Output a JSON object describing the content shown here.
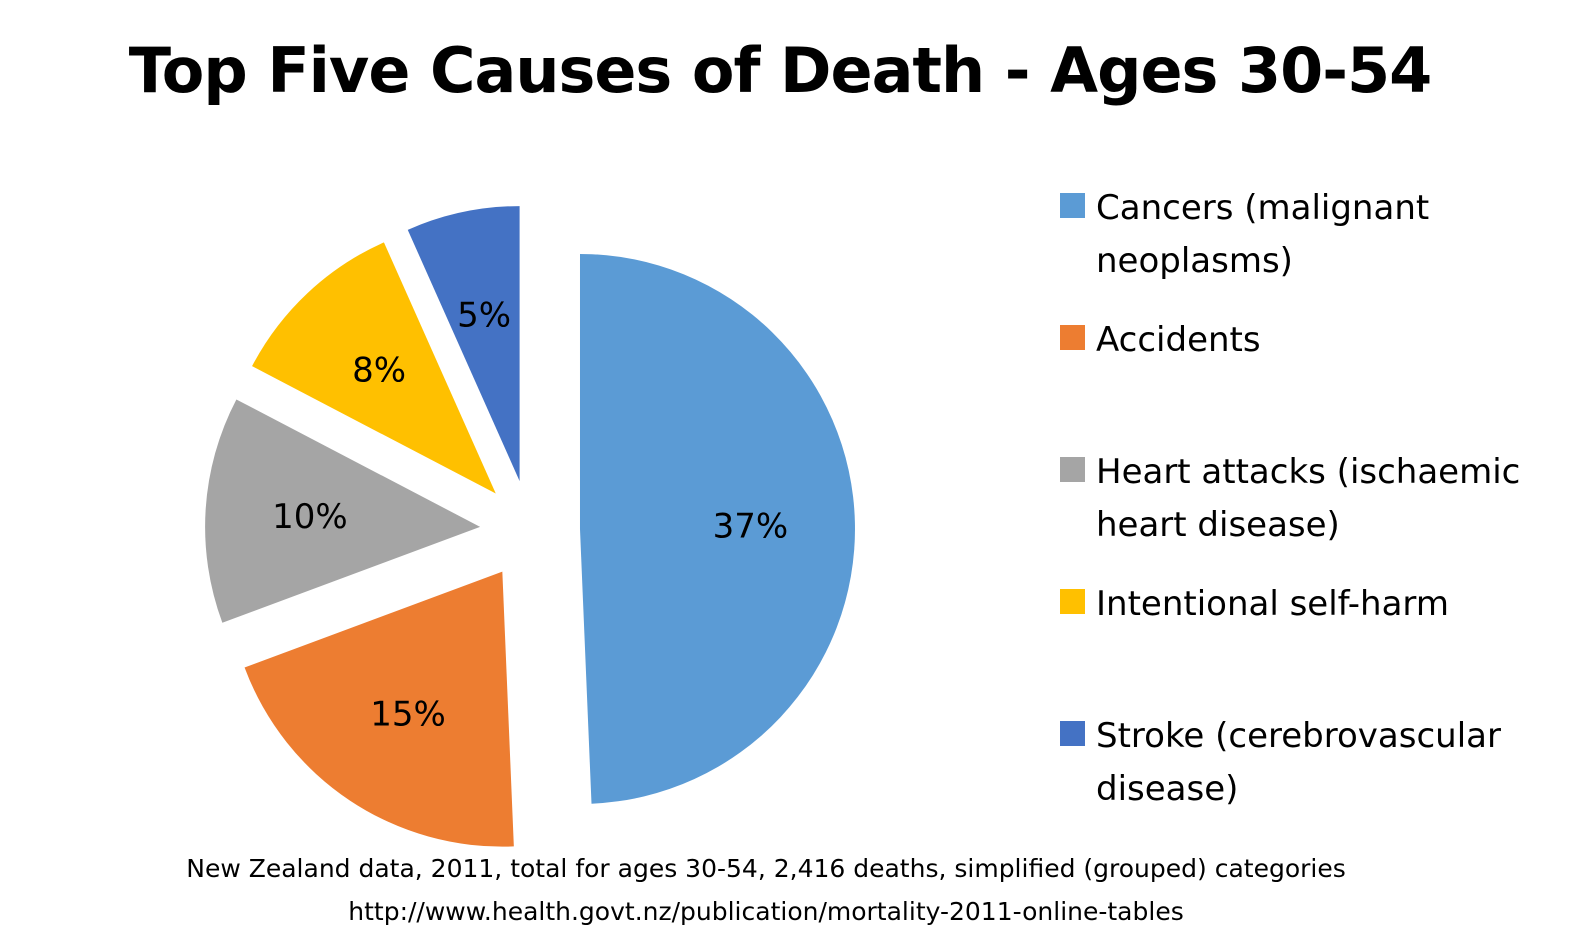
{
  "chart_data": {
    "type": "pie",
    "title": "Top Five Causes of Death - Ages 30-54",
    "categories": [
      "Cancers (malignant neoplasms)",
      "Accidents",
      "Heart attacks (ischaemic heart disease)",
      "Intentional self-harm",
      "Stroke (cerebrovascular disease)"
    ],
    "values": [
      37,
      15,
      10,
      8,
      5
    ],
    "value_labels": [
      "37%",
      "15%",
      "10%",
      "8%",
      "5%"
    ],
    "colors": [
      "#5B9BD5",
      "#ED7D31",
      "#A5A5A5",
      "#FFC000",
      "#4472C4"
    ],
    "exploded": true,
    "legend_position": "right"
  },
  "footnote": {
    "line1": "New Zealand data, 2011, total for ages 30-54, 2,416 deaths, simplified (grouped) categories",
    "line2": "http://www.health.govt.nz/publication/mortality-2011-online-tables"
  }
}
